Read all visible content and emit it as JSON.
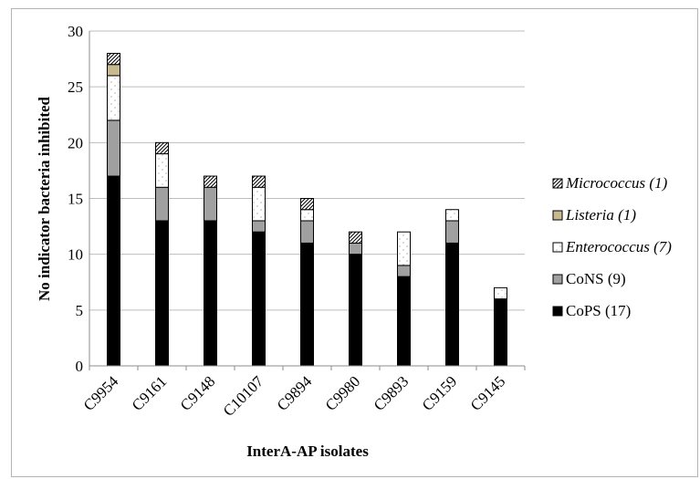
{
  "chart_data": {
    "type": "bar",
    "stacked": true,
    "xlabel": "InterA-AP isolates",
    "ylabel": "No indicator bacteria inhibited",
    "ylim": [
      0,
      30
    ],
    "yticks": [
      "0",
      "5",
      "10",
      "15",
      "20",
      "25",
      "30"
    ],
    "grid": true,
    "legend_position": "right",
    "categories": [
      "C9954",
      "C9161",
      "C9148",
      "C10107",
      "C9894",
      "C9980",
      "C9893",
      "C9159",
      "C9145"
    ],
    "series": [
      {
        "name": "CoPS",
        "count": "(17)",
        "italic": false,
        "color": "#000000",
        "pattern": "solid",
        "values": [
          17,
          13,
          13,
          12,
          11,
          10,
          8,
          11,
          6
        ]
      },
      {
        "name": "CoNS",
        "count": "(9)",
        "italic": false,
        "color": "#a0a0a0",
        "pattern": "solid",
        "values": [
          5,
          3,
          3,
          1,
          2,
          1,
          1,
          2,
          0
        ]
      },
      {
        "name": "Enterococcus",
        "count": "(7)",
        "italic": true,
        "color": "#ffffff",
        "pattern": "dots",
        "values": [
          4,
          3,
          0,
          3,
          1,
          0,
          3,
          1,
          1
        ]
      },
      {
        "name": "Listeria",
        "count": "(1)",
        "italic": true,
        "color": "#c9b98f",
        "pattern": "solid",
        "values": [
          1,
          0,
          0,
          0,
          0,
          0,
          0,
          0,
          0
        ]
      },
      {
        "name": "Micrococcus",
        "count": "(1)",
        "italic": true,
        "color": "#ffffff",
        "pattern": "hatch",
        "values": [
          1,
          1,
          1,
          1,
          1,
          1,
          0,
          0,
          0
        ]
      }
    ],
    "legend_order": [
      "Micrococcus",
      "Listeria",
      "Enterococcus",
      "CoNS",
      "CoPS"
    ]
  }
}
